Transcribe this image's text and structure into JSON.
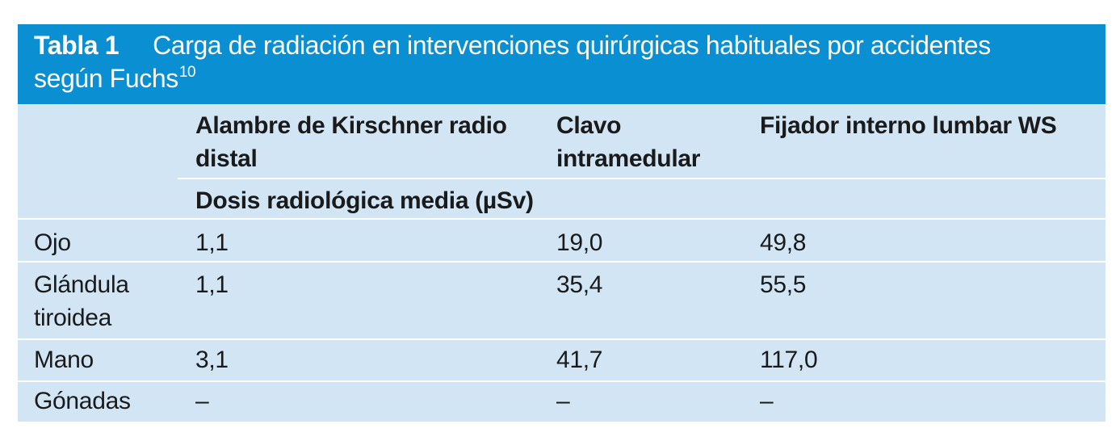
{
  "table": {
    "label": "Tabla 1",
    "title_line1": "Carga de radiación en intervenciones quirúrgicas habituales por accidentes",
    "title_line2": "según Fuchs",
    "title_ref": "10",
    "columns": [
      [
        "Alambre de Kirschner radio",
        "distal"
      ],
      [
        "Clavo",
        "intramedular"
      ],
      [
        "Fijador interno lumbar WS"
      ]
    ],
    "subheader": "Dosis radiológica media (µSv)",
    "rows": [
      {
        "label": [
          "Ojo"
        ],
        "values": [
          "1,1",
          "19,0",
          "49,8"
        ]
      },
      {
        "label": [
          "Glándula",
          "tiroidea"
        ],
        "values": [
          "1,1",
          "35,4",
          "55,5"
        ]
      },
      {
        "label": [
          "Mano"
        ],
        "values": [
          "3,1",
          "41,7",
          "117,0"
        ]
      },
      {
        "label": [
          "Gónadas"
        ],
        "values": [
          "–",
          "–",
          "–"
        ]
      }
    ]
  },
  "colors": {
    "header_bg": "#0a8fd2",
    "table_bg": "#d1e5f5",
    "header_text": "#ffffff",
    "rule": "#ffffff"
  }
}
